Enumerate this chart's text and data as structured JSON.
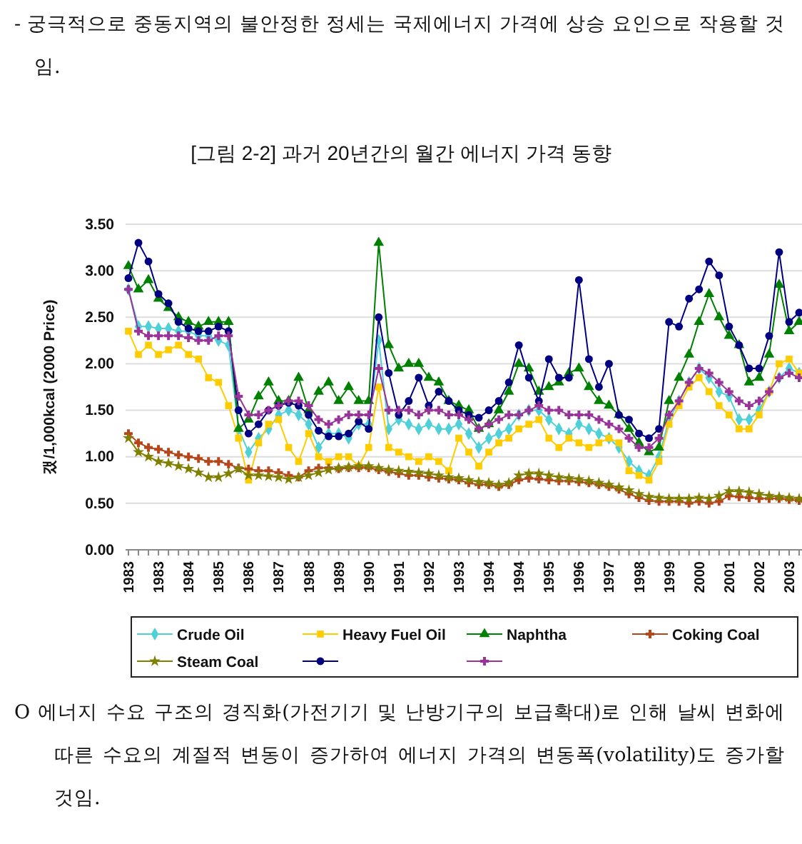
{
  "chart_data": {
    "type": "line",
    "title": "[그림 2-2] 과거 20년간의 월간 에너지 가격 동향",
    "ylabel": "갰/1,000kcal (2000 Price)",
    "annotations": [
      "- 궁극적으로 중동지역의 불안정한 정세는 국제에너지 가격에 상승 요인으로 작용할 것임.",
      "O 에너지 수요 구조의 경직화(가전기기 및 난방기구의 보급확대)로 인해 날씨 변화에 따른 수요의 계절적 변동이 증가하여 에너지 가격의 변동폭(volatility)도 증가할 것임."
    ],
    "categories": [
      "1983",
      null,
      null,
      "1983",
      null,
      null,
      "1984",
      null,
      null,
      "1985",
      null,
      null,
      "1986",
      null,
      null,
      "1987",
      null,
      null,
      "1988",
      null,
      null,
      "1989",
      null,
      null,
      "1990",
      null,
      null,
      "1991",
      null,
      null,
      "1992",
      null,
      null,
      "1993",
      null,
      null,
      "1994",
      null,
      null,
      "1994",
      null,
      null,
      "1995",
      null,
      null,
      "1996",
      null,
      null,
      "1997",
      null,
      null,
      "1998",
      null,
      null,
      "1999",
      null,
      null,
      "2000",
      null,
      null,
      "2001",
      null,
      null,
      "2002",
      null,
      null,
      "2003",
      null
    ],
    "ylim": [
      0,
      3.5
    ],
    "yticks": [
      {
        "value": 0,
        "label": "0.00"
      },
      {
        "value": 0.5,
        "label": "0.50"
      },
      {
        "value": 1,
        "label": "1.00"
      },
      {
        "value": 1.5,
        "label": "1.50"
      },
      {
        "value": 2,
        "label": "2.00"
      },
      {
        "value": 2.5,
        "label": "2.50"
      },
      {
        "value": 3,
        "label": "3.00"
      },
      {
        "value": 3.5,
        "label": "3.50"
      }
    ],
    "grid": "y",
    "legend": "bottom",
    "series": [
      {
        "name": "Crude Oil",
        "color": "#4fd0d8",
        "marker": "diamond",
        "values": [
          2.8,
          2.4,
          2.4,
          2.38,
          2.38,
          2.35,
          2.35,
          2.3,
          2.3,
          2.25,
          2.2,
          1.3,
          1.05,
          1.2,
          1.3,
          1.45,
          1.5,
          1.45,
          1.35,
          1.1,
          1.25,
          1.25,
          1.2,
          1.35,
          1.35,
          2.25,
          1.3,
          1.4,
          1.35,
          1.3,
          1.35,
          1.3,
          1.3,
          1.35,
          1.25,
          1.1,
          1.2,
          1.25,
          1.3,
          1.45,
          1.5,
          1.5,
          1.4,
          1.3,
          1.25,
          1.35,
          1.3,
          1.25,
          1.2,
          1.1,
          0.95,
          0.85,
          0.8,
          1.0,
          1.4,
          1.6,
          1.8,
          1.95,
          1.85,
          1.7,
          1.65,
          1.4,
          1.4,
          1.5,
          1.7,
          1.85,
          1.95,
          1.9
        ]
      },
      {
        "name": "Heavy Fuel Oil",
        "color": "#ffcc00",
        "marker": "square",
        "values": [
          2.35,
          2.1,
          2.2,
          2.1,
          2.15,
          2.2,
          2.1,
          2.05,
          1.85,
          1.8,
          1.55,
          1.2,
          0.75,
          1.15,
          1.35,
          1.4,
          1.1,
          0.95,
          1.25,
          1.0,
          0.95,
          1.0,
          1.0,
          0.9,
          1.1,
          1.75,
          1.1,
          1.05,
          1.0,
          0.95,
          1.0,
          0.95,
          0.85,
          1.2,
          1.05,
          0.9,
          1.05,
          1.15,
          1.2,
          1.3,
          1.35,
          1.4,
          1.2,
          1.1,
          1.2,
          1.15,
          1.1,
          1.15,
          1.2,
          1.15,
          0.85,
          0.8,
          0.75,
          0.95,
          1.35,
          1.55,
          1.75,
          1.85,
          1.7,
          1.55,
          1.45,
          1.3,
          1.3,
          1.45,
          1.7,
          2.0,
          2.05,
          1.9
        ]
      },
      {
        "name": "Naphtha",
        "color": "#008000",
        "marker": "triangle",
        "values": [
          3.05,
          2.8,
          2.9,
          2.7,
          2.6,
          2.5,
          2.45,
          2.4,
          2.45,
          2.45,
          2.45,
          1.3,
          1.4,
          1.65,
          1.8,
          1.6,
          1.6,
          1.85,
          1.5,
          1.7,
          1.8,
          1.6,
          1.75,
          1.6,
          1.6,
          3.3,
          2.2,
          1.95,
          2.0,
          2.0,
          1.85,
          1.8,
          1.6,
          1.55,
          1.5,
          1.3,
          1.35,
          1.5,
          1.7,
          2.0,
          1.95,
          1.7,
          1.75,
          1.8,
          1.9,
          1.95,
          1.75,
          1.6,
          1.55,
          1.45,
          1.3,
          1.15,
          1.05,
          1.1,
          1.6,
          1.85,
          2.1,
          2.45,
          2.75,
          2.5,
          2.3,
          2.2,
          1.8,
          1.85,
          2.1,
          2.85,
          2.35,
          2.45
        ]
      },
      {
        "name": "Coking Coal",
        "color": "#b5451b",
        "marker": "cross",
        "values": [
          1.25,
          1.15,
          1.1,
          1.08,
          1.05,
          1.02,
          1.0,
          0.98,
          0.95,
          0.95,
          0.92,
          0.88,
          0.87,
          0.85,
          0.85,
          0.83,
          0.8,
          0.78,
          0.85,
          0.88,
          0.88,
          0.87,
          0.88,
          0.88,
          0.88,
          0.86,
          0.84,
          0.82,
          0.8,
          0.8,
          0.78,
          0.77,
          0.76,
          0.75,
          0.72,
          0.7,
          0.7,
          0.68,
          0.7,
          0.75,
          0.77,
          0.76,
          0.75,
          0.74,
          0.74,
          0.73,
          0.72,
          0.7,
          0.68,
          0.65,
          0.6,
          0.56,
          0.53,
          0.52,
          0.52,
          0.52,
          0.5,
          0.52,
          0.5,
          0.52,
          0.58,
          0.57,
          0.56,
          0.55,
          0.55,
          0.55,
          0.54,
          0.53
        ]
      },
      {
        "name": "Steam Coal",
        "color": "#808000",
        "marker": "star",
        "values": [
          1.2,
          1.05,
          1.0,
          0.95,
          0.93,
          0.9,
          0.87,
          0.83,
          0.78,
          0.78,
          0.82,
          0.87,
          0.8,
          0.8,
          0.79,
          0.78,
          0.76,
          0.78,
          0.8,
          0.83,
          0.86,
          0.88,
          0.89,
          0.9,
          0.9,
          0.88,
          0.86,
          0.85,
          0.84,
          0.83,
          0.82,
          0.8,
          0.78,
          0.77,
          0.75,
          0.73,
          0.72,
          0.7,
          0.72,
          0.8,
          0.82,
          0.82,
          0.8,
          0.78,
          0.77,
          0.76,
          0.74,
          0.72,
          0.7,
          0.67,
          0.64,
          0.6,
          0.57,
          0.56,
          0.55,
          0.55,
          0.55,
          0.56,
          0.55,
          0.58,
          0.63,
          0.63,
          0.62,
          0.6,
          0.58,
          0.57,
          0.56,
          0.55
        ]
      },
      {
        "color": "#000080",
        "marker": "circle",
        "values": [
          2.92,
          3.3,
          3.1,
          2.75,
          2.65,
          2.45,
          2.38,
          2.35,
          2.35,
          2.4,
          2.35,
          1.5,
          1.25,
          1.35,
          1.5,
          1.55,
          1.58,
          1.55,
          1.45,
          1.28,
          1.22,
          1.22,
          1.25,
          1.38,
          1.3,
          2.5,
          1.9,
          1.45,
          1.6,
          1.85,
          1.55,
          1.7,
          1.6,
          1.5,
          1.45,
          1.42,
          1.5,
          1.6,
          1.8,
          2.2,
          1.85,
          1.6,
          2.05,
          1.85,
          1.85,
          2.9,
          2.05,
          1.75,
          2.0,
          1.45,
          1.4,
          1.25,
          1.2,
          1.3,
          2.45,
          2.4,
          2.7,
          2.8,
          3.1,
          2.95,
          2.4,
          2.2,
          1.95,
          1.95,
          2.3,
          3.2,
          2.45,
          2.55
        ]
      },
      {
        "color": "#993399",
        "marker": "cross",
        "values": [
          2.8,
          2.35,
          2.3,
          2.3,
          2.3,
          2.3,
          2.28,
          2.25,
          2.25,
          2.3,
          2.3,
          1.65,
          1.45,
          1.45,
          1.5,
          1.55,
          1.6,
          1.6,
          1.55,
          1.4,
          1.35,
          1.4,
          1.45,
          1.45,
          1.45,
          1.95,
          1.5,
          1.5,
          1.5,
          1.45,
          1.5,
          1.5,
          1.45,
          1.45,
          1.4,
          1.3,
          1.35,
          1.4,
          1.45,
          1.45,
          1.5,
          1.55,
          1.5,
          1.5,
          1.45,
          1.45,
          1.45,
          1.4,
          1.35,
          1.3,
          1.2,
          1.1,
          1.1,
          1.2,
          1.45,
          1.6,
          1.8,
          1.95,
          1.9,
          1.8,
          1.7,
          1.6,
          1.55,
          1.6,
          1.7,
          1.85,
          1.9,
          1.85
        ]
      }
    ]
  }
}
